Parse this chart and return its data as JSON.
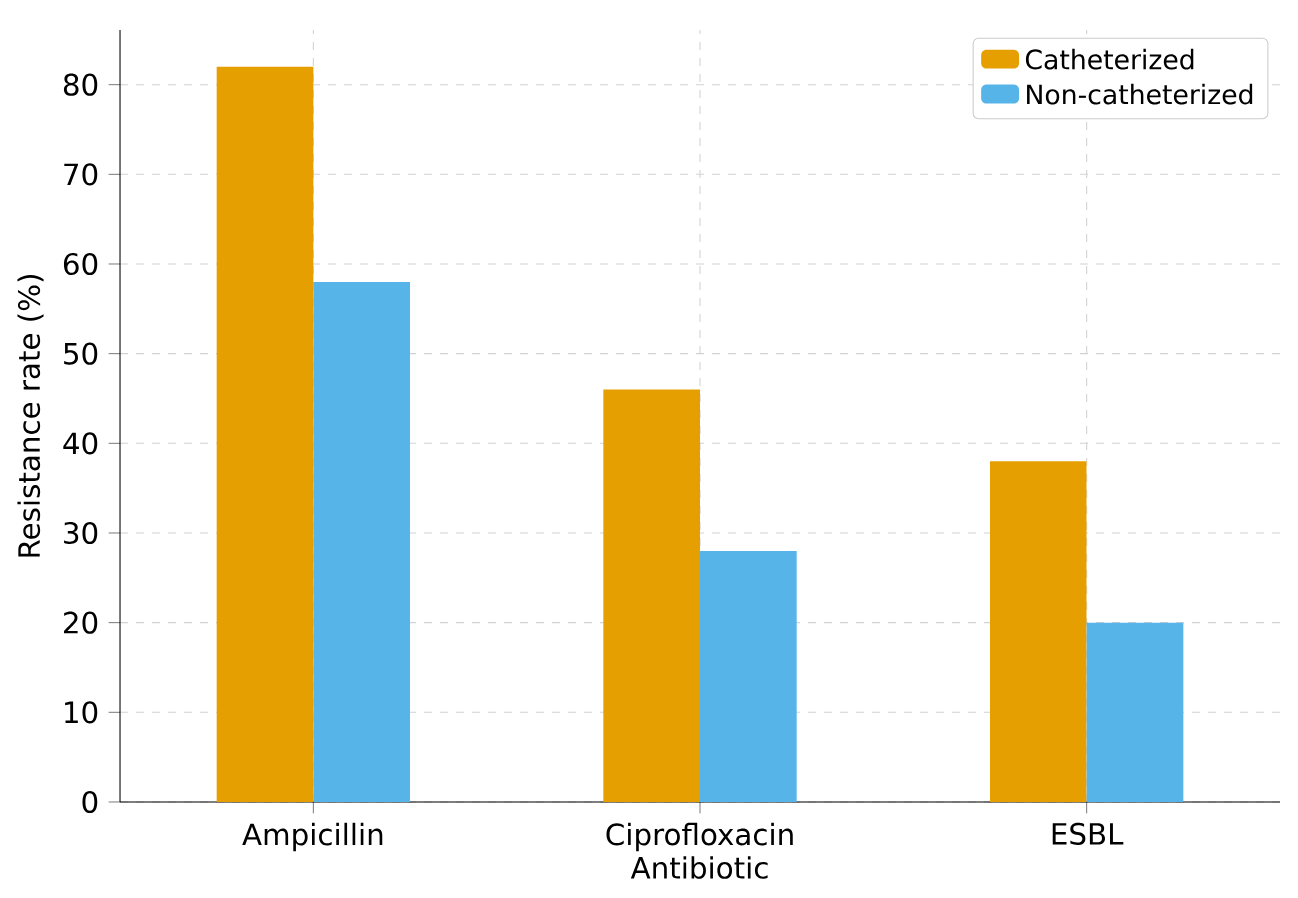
{
  "chart_data": {
    "type": "bar",
    "xlabel": "Antibiotic",
    "ylabel": "Resistance rate (%)",
    "categories": [
      "Ampicillin",
      "Ciprofloxacin",
      "ESBL"
    ],
    "series": [
      {
        "name": "Catheterized",
        "color": "#e69f00",
        "values": [
          82,
          46,
          38
        ]
      },
      {
        "name": "Non-catheterized",
        "color": "#56b4e9",
        "values": [
          58,
          28,
          20
        ]
      }
    ],
    "ylim": [
      0,
      86.1
    ],
    "yticks": [
      0,
      10,
      20,
      30,
      40,
      50,
      60,
      70,
      80
    ],
    "grid": true,
    "legend": "top right"
  }
}
